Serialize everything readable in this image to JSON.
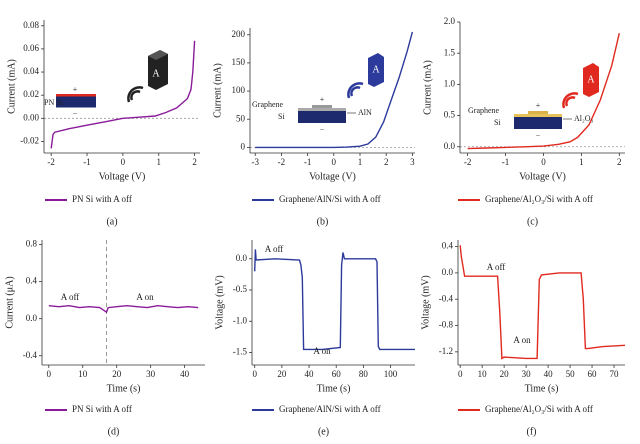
{
  "chart_data": [
    {
      "type": "line",
      "panel_label": "(a)",
      "xlabel": "Voltage (V)",
      "ylabel": "Current (mA)",
      "x": [
        -2,
        -1.95,
        -1.9,
        -1.5,
        -1,
        -0.5,
        0,
        0.5,
        0.9,
        1.2,
        1.5,
        1.8,
        1.9,
        1.95,
        2.0
      ],
      "series": [
        {
          "name": "PN Si with A off",
          "color": "#8b1a9b",
          "values": [
            -0.026,
            -0.014,
            -0.012,
            -0.009,
            -0.006,
            -0.003,
            0,
            0.001,
            0.002,
            0.005,
            0.009,
            0.017,
            0.025,
            0.04,
            0.067
          ]
        }
      ],
      "xlim": [
        -2.2,
        2.15
      ],
      "ylim": [
        -0.03,
        0.085
      ],
      "xticks": [
        -2,
        -1,
        0,
        1,
        2
      ],
      "yticks": [
        -0.02,
        {
          "value": 0,
          "label": "0.00"
        },
        0.02,
        0.04,
        0.06,
        0.08
      ],
      "zero_line": true,
      "inset_labels": [
        "A",
        "+",
        "PN Si",
        "−"
      ]
    },
    {
      "type": "line",
      "panel_label": "(b)",
      "xlabel": "Voltage (V)",
      "ylabel": "Current (mA)",
      "x": [
        -3,
        -2,
        -1,
        0,
        0.5,
        1,
        1.3,
        1.6,
        1.9,
        2.2,
        2.5,
        2.8,
        3.0
      ],
      "series": [
        {
          "name": "Graphene/AlN/Si with A off",
          "color": "#2c3a9c",
          "values": [
            0,
            0,
            0,
            0,
            0.5,
            2,
            6,
            18,
            45,
            85,
            125,
            170,
            205
          ]
        }
      ],
      "xlim": [
        -3.2,
        3.1
      ],
      "ylim": [
        -10,
        212
      ],
      "xticks": [
        -3,
        -2,
        -1,
        0,
        1,
        2,
        3
      ],
      "yticks": [
        0,
        50,
        100,
        150,
        200
      ],
      "zero_line": true,
      "inset_labels": [
        "A",
        "Graphene",
        "+",
        "AlN",
        "Si",
        "−"
      ]
    },
    {
      "type": "line",
      "panel_label": "(c)",
      "xlabel": "Voltage (V)",
      "ylabel": "Current (mA)",
      "x": [
        -2,
        -1.5,
        -1,
        -0.5,
        0,
        0.4,
        0.7,
        0.9,
        1.2,
        1.5,
        1.8,
        2.0
      ],
      "series": [
        {
          "name": "Graphene/Al₂O₃/Si with A off",
          "color": "#e02a1f",
          "values": [
            -0.03,
            -0.02,
            -0.01,
            0,
            0.01,
            0.04,
            0.08,
            0.15,
            0.35,
            0.75,
            1.3,
            1.82
          ]
        }
      ],
      "xlim": [
        -2.2,
        2.15
      ],
      "ylim": [
        -0.1,
        2.0
      ],
      "xticks": [
        -2,
        -1,
        0,
        1,
        2
      ],
      "yticks": [
        {
          "value": 0,
          "label": "0.0"
        },
        0.5,
        {
          "value": 1,
          "label": "1.0"
        },
        1.5,
        {
          "value": 2,
          "label": "2.0"
        }
      ],
      "zero_line": true,
      "inset_labels": [
        "A",
        "Graphene",
        "+",
        "Al₂O₃",
        "Si",
        "−"
      ]
    },
    {
      "type": "line",
      "panel_label": "(d)",
      "xlabel": "Time (s)",
      "ylabel": "Current (μA)",
      "x": [
        0,
        3,
        6,
        9,
        12,
        15,
        17,
        17.5,
        20,
        23,
        26,
        29,
        32,
        35,
        38,
        41,
        44
      ],
      "series": [
        {
          "name": "PN Si with A off",
          "color": "#8b1a9b",
          "values": [
            0.14,
            0.13,
            0.14,
            0.12,
            0.13,
            0.12,
            0.07,
            0.12,
            0.13,
            0.14,
            0.13,
            0.12,
            0.14,
            0.13,
            0.12,
            0.13,
            0.12
          ]
        }
      ],
      "xlim": [
        -2,
        46
      ],
      "ylim": [
        -0.5,
        0.85
      ],
      "xticks": [
        0,
        10,
        20,
        30,
        40
      ],
      "yticks": [
        -0.4,
        {
          "value": 0,
          "label": "0.0"
        },
        0.4,
        0.8
      ],
      "vline": 17,
      "annotations": [
        "A off",
        "A on"
      ]
    },
    {
      "type": "line",
      "panel_label": "(e)",
      "xlabel": "Time (s)",
      "ylabel": "Voltage (mV)",
      "x": [
        0,
        0.5,
        1,
        15,
        33,
        34,
        35,
        36,
        38,
        50,
        63,
        64,
        65,
        66,
        80,
        89,
        90,
        91,
        92,
        105,
        118
      ],
      "series": [
        {
          "name": "Graphene/AlN/Si with A off",
          "color": "#2c3a9c",
          "values": [
            -0.2,
            0.15,
            -0.02,
            0,
            -0.02,
            -0.1,
            -0.3,
            -1.45,
            -1.45,
            -1.45,
            -1.42,
            -0.1,
            0.1,
            0,
            0,
            0,
            -0.05,
            -1.4,
            -1.45,
            -1.45,
            -1.45
          ]
        }
      ],
      "xlim": [
        -2,
        118
      ],
      "ylim": [
        -1.7,
        0.3
      ],
      "xticks": [
        0,
        20,
        40,
        60,
        80,
        100
      ],
      "yticks": [
        -1.5,
        {
          "value": -1,
          "label": "-1.0"
        },
        -0.5,
        {
          "value": 0,
          "label": "0.0"
        }
      ],
      "annotations": [
        "A off",
        "A on"
      ]
    },
    {
      "type": "line",
      "panel_label": "(f)",
      "xlabel": "Time (s)",
      "ylabel": "Voltage (mV)",
      "x": [
        0,
        0.5,
        2,
        10,
        17,
        18,
        19,
        20,
        30,
        35,
        36,
        37,
        45,
        55,
        56,
        57,
        58,
        65,
        75
      ],
      "series": [
        {
          "name": "Graphene/Al₂O₃/Si with A off",
          "color": "#e02a1f",
          "values": [
            0.42,
            0.25,
            -0.05,
            -0.05,
            -0.05,
            -0.6,
            -1.3,
            -1.28,
            -1.3,
            -1.3,
            -0.1,
            -0.03,
            0,
            0,
            -0.4,
            -1.15,
            -1.15,
            -1.12,
            -1.1
          ]
        }
      ],
      "xlim": [
        -1,
        75
      ],
      "ylim": [
        -1.4,
        0.5
      ],
      "xticks": [
        0,
        10,
        20,
        30,
        40,
        50,
        60,
        70
      ],
      "yticks": [
        -1.2,
        -0.8,
        -0.4,
        {
          "value": 0,
          "label": "0.0"
        },
        0.4
      ],
      "annotations": [
        "A off",
        "A on"
      ]
    }
  ]
}
